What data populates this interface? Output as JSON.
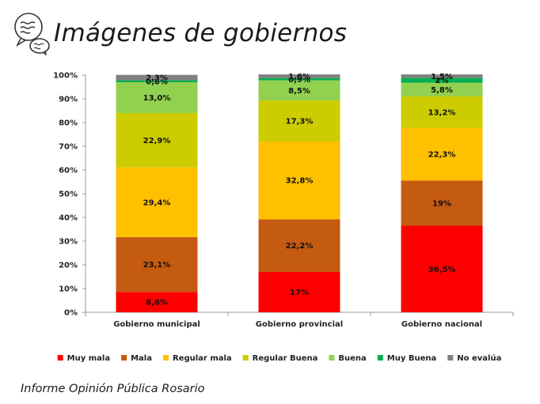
{
  "title": "Imágenes de gobiernos",
  "footer": "Informe Opinión Pública Rosario",
  "logo_icon": "speech-bubbles-icon",
  "chart_data": {
    "type": "bar",
    "stacked": true,
    "categories": [
      "Gobierno municipal",
      "Gobierno provincial",
      "Gobierno nacional"
    ],
    "ylim": [
      0,
      100
    ],
    "yticks": [
      "0%",
      "10%",
      "20%",
      "30%",
      "40%",
      "50%",
      "60%",
      "70%",
      "80%",
      "90%",
      "100%"
    ],
    "grid": false,
    "legend_position": "bottom",
    "series": [
      {
        "name": "Muy mala",
        "color": "#ff0000",
        "values": [
          8.6,
          17,
          36.5
        ],
        "labels": [
          "8,6%",
          "17%",
          "36,5%"
        ]
      },
      {
        "name": "Mala",
        "color": "#c55a11",
        "values": [
          23.1,
          22.2,
          19
        ],
        "labels": [
          "23,1%",
          "22,2%",
          "19%"
        ]
      },
      {
        "name": "Regular mala",
        "color": "#ffc000",
        "values": [
          29.4,
          32.8,
          22.3
        ],
        "labels": [
          "29,4%",
          "32,8%",
          "22,3%"
        ]
      },
      {
        "name": "Regular Buena",
        "color": "#cccc00",
        "values": [
          22.9,
          17.3,
          13.2
        ],
        "labels": [
          "22,9%",
          "17,3%",
          "13,2%"
        ]
      },
      {
        "name": "Buena",
        "color": "#92d050",
        "values": [
          13.0,
          8.5,
          5.8
        ],
        "labels": [
          "13,0%",
          "8,5%",
          "5,8%"
        ]
      },
      {
        "name": "Muy Buena",
        "color": "#00b050",
        "values": [
          0.8,
          0.9,
          2
        ],
        "labels": [
          "0,8%",
          "0,9%",
          "2%"
        ]
      },
      {
        "name": "No evalúa",
        "color": "#808080",
        "values": [
          2.3,
          1.6,
          1.5
        ],
        "labels": [
          "2,3%",
          "1,6%",
          "1,5%"
        ]
      }
    ]
  }
}
